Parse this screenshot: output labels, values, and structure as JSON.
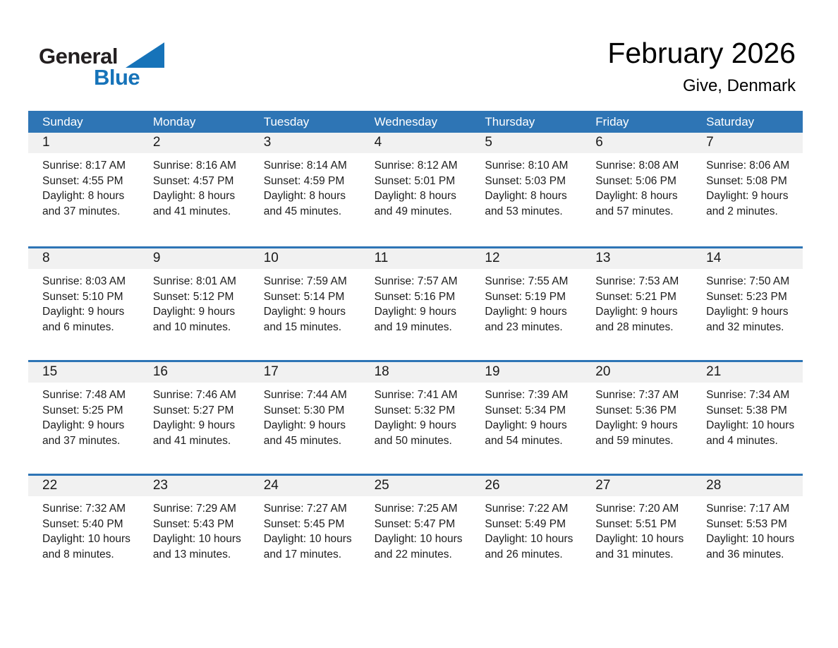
{
  "logo": {
    "general": "General",
    "blue": "Blue"
  },
  "header": {
    "title": "February 2026",
    "subtitle": "Give, Denmark"
  },
  "colors": {
    "accent_blue": "#2E75B5",
    "day_number_band": "#F1F1F1",
    "logo_blue": "#1673B9",
    "header_text": "#FFFFFF"
  },
  "calendar": {
    "day_headers": [
      "Sunday",
      "Monday",
      "Tuesday",
      "Wednesday",
      "Thursday",
      "Friday",
      "Saturday"
    ],
    "weeks": [
      [
        {
          "day": "1",
          "sunrise": "Sunrise: 8:17 AM",
          "sunset": "Sunset: 4:55 PM",
          "daylight1": "Daylight: 8 hours",
          "daylight2": "and 37 minutes."
        },
        {
          "day": "2",
          "sunrise": "Sunrise: 8:16 AM",
          "sunset": "Sunset: 4:57 PM",
          "daylight1": "Daylight: 8 hours",
          "daylight2": "and 41 minutes."
        },
        {
          "day": "3",
          "sunrise": "Sunrise: 8:14 AM",
          "sunset": "Sunset: 4:59 PM",
          "daylight1": "Daylight: 8 hours",
          "daylight2": "and 45 minutes."
        },
        {
          "day": "4",
          "sunrise": "Sunrise: 8:12 AM",
          "sunset": "Sunset: 5:01 PM",
          "daylight1": "Daylight: 8 hours",
          "daylight2": "and 49 minutes."
        },
        {
          "day": "5",
          "sunrise": "Sunrise: 8:10 AM",
          "sunset": "Sunset: 5:03 PM",
          "daylight1": "Daylight: 8 hours",
          "daylight2": "and 53 minutes."
        },
        {
          "day": "6",
          "sunrise": "Sunrise: 8:08 AM",
          "sunset": "Sunset: 5:06 PM",
          "daylight1": "Daylight: 8 hours",
          "daylight2": "and 57 minutes."
        },
        {
          "day": "7",
          "sunrise": "Sunrise: 8:06 AM",
          "sunset": "Sunset: 5:08 PM",
          "daylight1": "Daylight: 9 hours",
          "daylight2": "and 2 minutes."
        }
      ],
      [
        {
          "day": "8",
          "sunrise": "Sunrise: 8:03 AM",
          "sunset": "Sunset: 5:10 PM",
          "daylight1": "Daylight: 9 hours",
          "daylight2": "and 6 minutes."
        },
        {
          "day": "9",
          "sunrise": "Sunrise: 8:01 AM",
          "sunset": "Sunset: 5:12 PM",
          "daylight1": "Daylight: 9 hours",
          "daylight2": "and 10 minutes."
        },
        {
          "day": "10",
          "sunrise": "Sunrise: 7:59 AM",
          "sunset": "Sunset: 5:14 PM",
          "daylight1": "Daylight: 9 hours",
          "daylight2": "and 15 minutes."
        },
        {
          "day": "11",
          "sunrise": "Sunrise: 7:57 AM",
          "sunset": "Sunset: 5:16 PM",
          "daylight1": "Daylight: 9 hours",
          "daylight2": "and 19 minutes."
        },
        {
          "day": "12",
          "sunrise": "Sunrise: 7:55 AM",
          "sunset": "Sunset: 5:19 PM",
          "daylight1": "Daylight: 9 hours",
          "daylight2": "and 23 minutes."
        },
        {
          "day": "13",
          "sunrise": "Sunrise: 7:53 AM",
          "sunset": "Sunset: 5:21 PM",
          "daylight1": "Daylight: 9 hours",
          "daylight2": "and 28 minutes."
        },
        {
          "day": "14",
          "sunrise": "Sunrise: 7:50 AM",
          "sunset": "Sunset: 5:23 PM",
          "daylight1": "Daylight: 9 hours",
          "daylight2": "and 32 minutes."
        }
      ],
      [
        {
          "day": "15",
          "sunrise": "Sunrise: 7:48 AM",
          "sunset": "Sunset: 5:25 PM",
          "daylight1": "Daylight: 9 hours",
          "daylight2": "and 37 minutes."
        },
        {
          "day": "16",
          "sunrise": "Sunrise: 7:46 AM",
          "sunset": "Sunset: 5:27 PM",
          "daylight1": "Daylight: 9 hours",
          "daylight2": "and 41 minutes."
        },
        {
          "day": "17",
          "sunrise": "Sunrise: 7:44 AM",
          "sunset": "Sunset: 5:30 PM",
          "daylight1": "Daylight: 9 hours",
          "daylight2": "and 45 minutes."
        },
        {
          "day": "18",
          "sunrise": "Sunrise: 7:41 AM",
          "sunset": "Sunset: 5:32 PM",
          "daylight1": "Daylight: 9 hours",
          "daylight2": "and 50 minutes."
        },
        {
          "day": "19",
          "sunrise": "Sunrise: 7:39 AM",
          "sunset": "Sunset: 5:34 PM",
          "daylight1": "Daylight: 9 hours",
          "daylight2": "and 54 minutes."
        },
        {
          "day": "20",
          "sunrise": "Sunrise: 7:37 AM",
          "sunset": "Sunset: 5:36 PM",
          "daylight1": "Daylight: 9 hours",
          "daylight2": "and 59 minutes."
        },
        {
          "day": "21",
          "sunrise": "Sunrise: 7:34 AM",
          "sunset": "Sunset: 5:38 PM",
          "daylight1": "Daylight: 10 hours",
          "daylight2": "and 4 minutes."
        }
      ],
      [
        {
          "day": "22",
          "sunrise": "Sunrise: 7:32 AM",
          "sunset": "Sunset: 5:40 PM",
          "daylight1": "Daylight: 10 hours",
          "daylight2": "and 8 minutes."
        },
        {
          "day": "23",
          "sunrise": "Sunrise: 7:29 AM",
          "sunset": "Sunset: 5:43 PM",
          "daylight1": "Daylight: 10 hours",
          "daylight2": "and 13 minutes."
        },
        {
          "day": "24",
          "sunrise": "Sunrise: 7:27 AM",
          "sunset": "Sunset: 5:45 PM",
          "daylight1": "Daylight: 10 hours",
          "daylight2": "and 17 minutes."
        },
        {
          "day": "25",
          "sunrise": "Sunrise: 7:25 AM",
          "sunset": "Sunset: 5:47 PM",
          "daylight1": "Daylight: 10 hours",
          "daylight2": "and 22 minutes."
        },
        {
          "day": "26",
          "sunrise": "Sunrise: 7:22 AM",
          "sunset": "Sunset: 5:49 PM",
          "daylight1": "Daylight: 10 hours",
          "daylight2": "and 26 minutes."
        },
        {
          "day": "27",
          "sunrise": "Sunrise: 7:20 AM",
          "sunset": "Sunset: 5:51 PM",
          "daylight1": "Daylight: 10 hours",
          "daylight2": "and 31 minutes."
        },
        {
          "day": "28",
          "sunrise": "Sunrise: 7:17 AM",
          "sunset": "Sunset: 5:53 PM",
          "daylight1": "Daylight: 10 hours",
          "daylight2": "and 36 minutes."
        }
      ]
    ]
  }
}
